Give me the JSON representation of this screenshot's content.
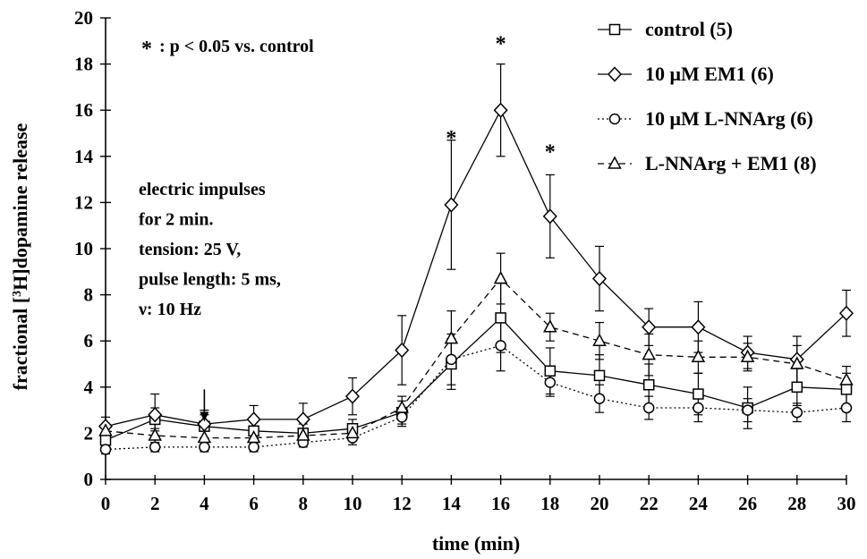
{
  "chart_data": {
    "type": "line",
    "xlabel": "time (min)",
    "ylabel_parts": {
      "pre": "fractional [",
      "sup": "3",
      "post": "H]dopamine release"
    },
    "xlim": [
      0,
      30
    ],
    "ylim": [
      0,
      20
    ],
    "x_ticks": [
      0,
      2,
      4,
      6,
      8,
      10,
      12,
      14,
      16,
      18,
      20,
      22,
      24,
      26,
      28,
      30
    ],
    "y_ticks": [
      0,
      2,
      4,
      6,
      8,
      10,
      12,
      14,
      16,
      18,
      20
    ],
    "x": [
      0,
      2,
      4,
      6,
      8,
      10,
      12,
      14,
      16,
      18,
      20,
      22,
      24,
      26,
      28,
      30
    ],
    "grid": false,
    "legend_position": "top-right",
    "series": [
      {
        "name": "control (5)",
        "marker": "square",
        "line": "solid",
        "values": [
          1.7,
          2.6,
          2.3,
          2.1,
          2.0,
          2.2,
          2.9,
          5.0,
          7.0,
          4.7,
          4.5,
          4.1,
          3.7,
          3.1,
          4.0,
          3.9
        ],
        "errors": [
          0.3,
          0.5,
          0.5,
          0.4,
          0.4,
          0.4,
          0.5,
          1.1,
          1.5,
          1.0,
          0.9,
          0.9,
          0.9,
          0.9,
          0.8,
          0.7
        ]
      },
      {
        "name": "10 μM EM1 (6)",
        "marker": "diamond",
        "line": "solid",
        "values": [
          2.3,
          2.8,
          2.4,
          2.6,
          2.6,
          3.6,
          5.6,
          11.9,
          16.0,
          11.4,
          8.7,
          6.6,
          6.6,
          5.5,
          5.2,
          7.2
        ],
        "errors": [
          0.4,
          0.9,
          0.6,
          0.6,
          0.7,
          0.8,
          1.5,
          2.8,
          2.0,
          1.8,
          1.4,
          0.8,
          1.1,
          0.7,
          1.0,
          1.0
        ]
      },
      {
        "name": "10 μM L-NNArg (6)",
        "marker": "circle",
        "line": "dotted",
        "values": [
          1.3,
          1.4,
          1.4,
          1.4,
          1.6,
          1.8,
          2.7,
          5.2,
          5.8,
          4.2,
          3.5,
          3.1,
          3.1,
          3.0,
          2.9,
          3.1
        ],
        "errors": [
          0.2,
          0.2,
          0.2,
          0.2,
          0.2,
          0.3,
          0.4,
          1.1,
          1.1,
          0.6,
          0.6,
          0.5,
          0.6,
          0.5,
          0.4,
          0.6
        ]
      },
      {
        "name": "L-NNArg + EM1 (8)",
        "marker": "triangle",
        "line": "dashed",
        "values": [
          2.1,
          1.9,
          1.8,
          1.8,
          1.9,
          2.0,
          3.1,
          6.1,
          8.7,
          6.6,
          6.0,
          5.4,
          5.3,
          5.3,
          5.0,
          4.3
        ],
        "errors": [
          0.3,
          0.3,
          0.3,
          0.3,
          0.3,
          0.3,
          0.5,
          1.2,
          1.1,
          0.6,
          0.8,
          0.9,
          0.7,
          0.6,
          0.8,
          0.6
        ]
      }
    ],
    "significance": {
      "symbol": "*",
      "note": ": p < 0.05 vs. control",
      "marked_x": [
        14,
        16,
        18
      ],
      "marked_y": [
        14.8,
        18.9,
        14.2
      ]
    },
    "stimulation": {
      "arrow_x": 4,
      "arrow_y_from": 3.9,
      "arrow_y_to": 2.5,
      "lines": [
        "electric impulses",
        "for 2 min.",
        "tension: 25 V,",
        "pulse length: 5 ms,",
        "ν: 10 Hz"
      ]
    }
  }
}
